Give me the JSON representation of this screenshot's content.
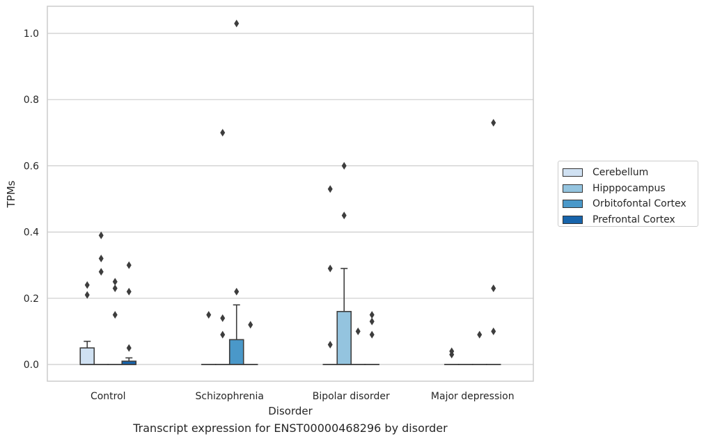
{
  "caption": "Transcript expression for ENST00000468296 by disorder",
  "chart_data": {
    "type": "box",
    "xlabel": "Disorder",
    "ylabel": "TPMs",
    "ylim": [
      -0.05,
      1.08
    ],
    "yticks": [
      0.0,
      0.2,
      0.4,
      0.6,
      0.8,
      1.0
    ],
    "ytick_labels": [
      "0.0",
      "0.2",
      "0.4",
      "0.6",
      "0.8",
      "1.0"
    ],
    "grid": "horizontal",
    "legend_position": "right",
    "categories": [
      "Control",
      "Schizophrenia",
      "Bipolar disorder",
      "Major depression"
    ],
    "series": [
      {
        "name": "Cerebellum",
        "color": "#d0e1f2",
        "boxes": [
          {
            "q1": 0,
            "median": 0,
            "q3": 0.05,
            "whisker_low": 0,
            "whisker_high": 0.07,
            "outliers": [
              0.21,
              0.24
            ]
          },
          {
            "q1": 0,
            "median": 0,
            "q3": 0,
            "whisker_low": 0,
            "whisker_high": 0,
            "outliers": [
              0.15
            ]
          },
          {
            "q1": 0,
            "median": 0,
            "q3": 0,
            "whisker_low": 0,
            "whisker_high": 0,
            "outliers": [
              0.06,
              0.29,
              0.53
            ]
          },
          {
            "q1": 0,
            "median": 0,
            "q3": 0,
            "whisker_low": 0,
            "whisker_high": 0,
            "outliers": [
              0.03,
              0.04
            ]
          }
        ]
      },
      {
        "name": "Hipppocampus",
        "color": "#94c4df",
        "boxes": [
          {
            "q1": 0,
            "median": 0,
            "q3": 0,
            "whisker_low": 0,
            "whisker_high": 0,
            "outliers": [
              0.28,
              0.32,
              0.39
            ]
          },
          {
            "q1": 0,
            "median": 0,
            "q3": 0,
            "whisker_low": 0,
            "whisker_high": 0,
            "outliers": [
              0.09,
              0.14,
              0.7
            ]
          },
          {
            "q1": 0,
            "median": 0,
            "q3": 0.16,
            "whisker_low": 0,
            "whisker_high": 0.29,
            "outliers": [
              0.45,
              0.6
            ]
          },
          {
            "q1": 0,
            "median": 0,
            "q3": 0,
            "whisker_low": 0,
            "whisker_high": 0,
            "outliers": []
          }
        ]
      },
      {
        "name": "Orbitofontal Cortex",
        "color": "#4a98c9",
        "boxes": [
          {
            "q1": 0,
            "median": 0,
            "q3": 0,
            "whisker_low": 0,
            "whisker_high": 0,
            "outliers": [
              0.15,
              0.23,
              0.25
            ]
          },
          {
            "q1": 0,
            "median": 0,
            "q3": 0.075,
            "whisker_low": 0,
            "whisker_high": 0.18,
            "outliers": [
              0.22,
              1.03
            ]
          },
          {
            "q1": 0,
            "median": 0,
            "q3": 0,
            "whisker_low": 0,
            "whisker_high": 0,
            "outliers": [
              0.1
            ]
          },
          {
            "q1": 0,
            "median": 0,
            "q3": 0,
            "whisker_low": 0,
            "whisker_high": 0,
            "outliers": [
              0.09
            ]
          }
        ]
      },
      {
        "name": "Prefrontal Cortex",
        "color": "#1764ab",
        "boxes": [
          {
            "q1": 0,
            "median": 0,
            "q3": 0.01,
            "whisker_low": 0,
            "whisker_high": 0.02,
            "outliers": [
              0.05,
              0.22,
              0.3
            ]
          },
          {
            "q1": 0,
            "median": 0,
            "q3": 0,
            "whisker_low": 0,
            "whisker_high": 0,
            "outliers": [
              0.12
            ]
          },
          {
            "q1": 0,
            "median": 0,
            "q3": 0,
            "whisker_low": 0,
            "whisker_high": 0,
            "outliers": [
              0.09,
              0.13,
              0.15
            ]
          },
          {
            "q1": 0,
            "median": 0,
            "q3": 0,
            "whisker_low": 0,
            "whisker_high": 0,
            "outliers": [
              0.1,
              0.23,
              0.73
            ]
          }
        ]
      }
    ]
  }
}
